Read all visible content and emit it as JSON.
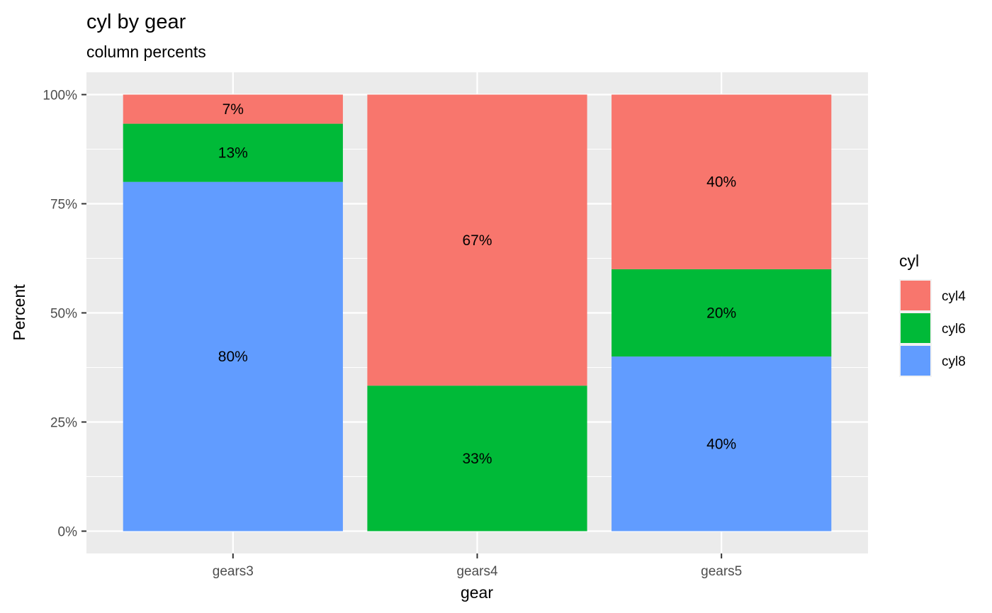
{
  "chart_data": {
    "type": "bar",
    "stacked": true,
    "title": "cyl  by  gear",
    "subtitle": "column percents",
    "xlabel": "gear",
    "ylabel": "Percent",
    "categories": [
      "gears3",
      "gears4",
      "gears5"
    ],
    "ylim": [
      0,
      100
    ],
    "yticks": [
      0,
      25,
      50,
      75,
      100
    ],
    "ytick_labels": [
      "0%",
      "25%",
      "50%",
      "75%",
      "100%"
    ],
    "grid": true,
    "legend": {
      "title": "cyl",
      "position": "right"
    },
    "series": [
      {
        "name": "cyl4",
        "color": "#F8766D",
        "values": [
          6.67,
          66.67,
          40
        ],
        "labels": [
          "7%",
          "67%",
          "40%"
        ]
      },
      {
        "name": "cyl6",
        "color": "#00BA38",
        "values": [
          13.33,
          33.33,
          20
        ],
        "labels": [
          "13%",
          "33%",
          "20%"
        ]
      },
      {
        "name": "cyl8",
        "color": "#619CFF",
        "values": [
          80,
          0,
          40
        ],
        "labels": [
          "80%",
          "",
          "40%"
        ]
      }
    ],
    "stack_order_bottom_to_top": [
      "cyl8",
      "cyl6",
      "cyl4"
    ]
  }
}
